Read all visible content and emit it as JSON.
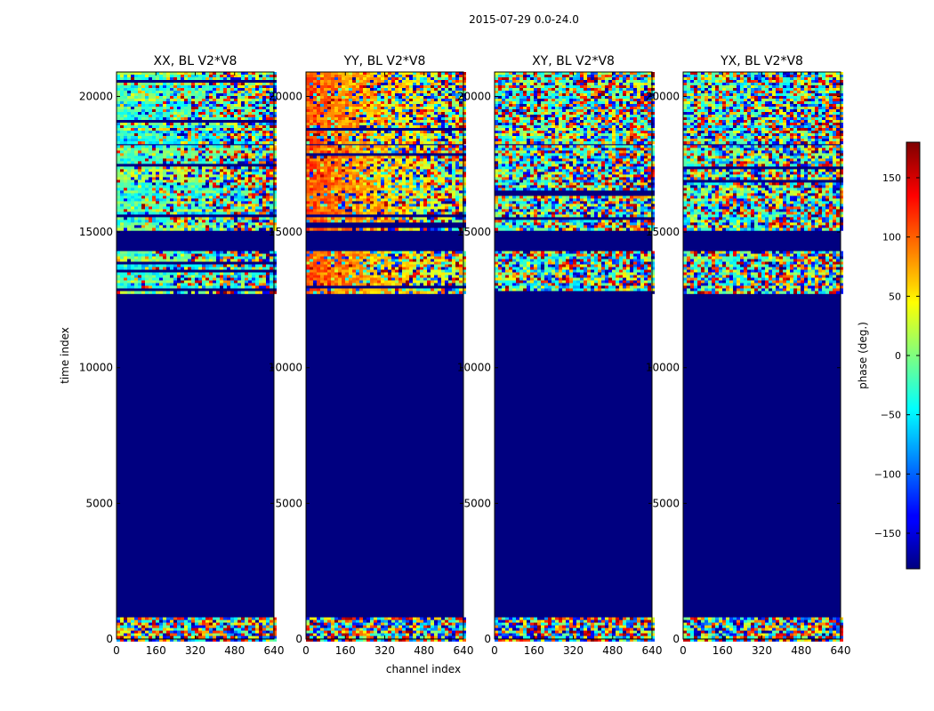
{
  "figure": {
    "suptitle": "2015-07-29 0.0-24.0",
    "ylabel": "time index",
    "xlabel": "channel index"
  },
  "chart_data": {
    "type": "heatmap",
    "description": "Visibility phase waterfall per polarization for baseline V2*V8",
    "x_ticks": [
      0,
      160,
      320,
      480,
      640
    ],
    "y_ticks": [
      0,
      5000,
      10000,
      15000,
      20000
    ],
    "xlim": [
      0,
      640
    ],
    "ylim": [
      0,
      20900
    ],
    "panels": [
      {
        "title": "XX, BL V2*V8",
        "key": "XX"
      },
      {
        "title": "YY, BL V2*V8",
        "key": "YY"
      },
      {
        "title": "XY, BL V2*V8",
        "key": "XY"
      },
      {
        "title": "YX, BL V2*V8",
        "key": "YX"
      }
    ],
    "data_bands": [
      {
        "from": 0,
        "to": 800,
        "kind": "noise"
      },
      {
        "from": 12800,
        "to": 14300,
        "kind": "structured"
      },
      {
        "from": 15100,
        "to": 18200,
        "kind": "structured"
      },
      {
        "from": 18300,
        "to": 20900,
        "kind": "noisy"
      }
    ],
    "empty_value_deg": -180,
    "colorbar": {
      "label": "phase (deg.)",
      "range": [
        -180,
        180
      ],
      "ticks": [
        -150,
        -100,
        -50,
        0,
        50,
        100,
        150
      ],
      "colormap": "jet"
    }
  }
}
